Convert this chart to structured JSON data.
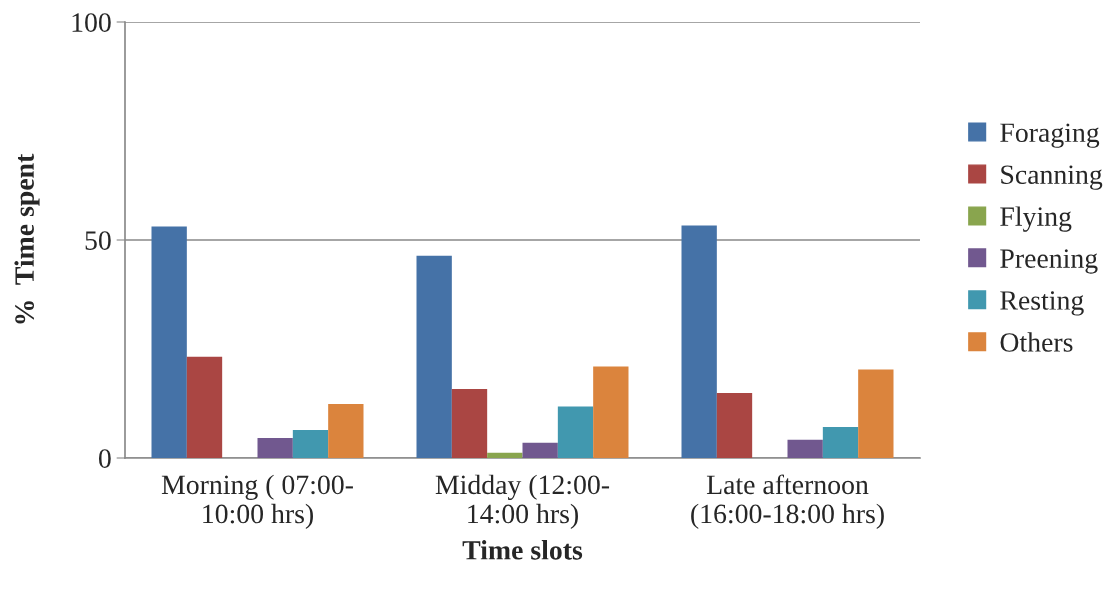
{
  "chart_data": {
    "type": "bar",
    "xlabel": "Time slots",
    "ylabel": "%  Time spent",
    "categories": [
      "Morning ( 07:00-\n10:00 hrs)",
      "Midday (12:00-\n14:00 hrs)",
      "Late afternoon\n(16:00-18:00 hrs)"
    ],
    "series": [
      {
        "name": "Foraging",
        "color": "#4572a7",
        "values": [
          53.1,
          46.4,
          53.3
        ]
      },
      {
        "name": "Scanning",
        "color": "#aa4643",
        "values": [
          23.2,
          15.8,
          14.9
        ]
      },
      {
        "name": "Flying",
        "color": "#89a54e",
        "values": [
          0,
          1.2,
          0
        ]
      },
      {
        "name": "Preening",
        "color": "#71588f",
        "values": [
          4.6,
          3.5,
          4.2
        ]
      },
      {
        "name": "Resting",
        "color": "#4198af",
        "values": [
          6.4,
          11.8,
          7.1
        ]
      },
      {
        "name": "Others",
        "color": "#db843d",
        "values": [
          12.4,
          21.0,
          20.3
        ]
      }
    ],
    "ylim": [
      0,
      100
    ],
    "yticks": [
      0,
      50,
      100
    ],
    "grid": "y",
    "legend": "right"
  }
}
